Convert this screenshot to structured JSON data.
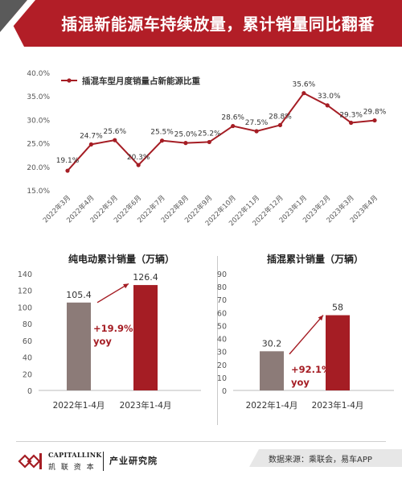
{
  "header": {
    "title": "插混新能源车持续放量，累计销量同比翻番",
    "colors": {
      "banner": "#b21e27",
      "accent": "#4a4a4a"
    }
  },
  "footer": {
    "logo_en": "CAPITALLINK",
    "logo_cn": "凯 联 资 本",
    "institute": "产业研究院",
    "source": "数据来源：乘联会，易车APP"
  },
  "chart_data": [
    {
      "type": "line",
      "title": "",
      "legend": "插混车型月度销量占新能源比重",
      "legend_position": "top-left",
      "categories": [
        "2022年3月",
        "2022年4月",
        "2022年5月",
        "2022年6月",
        "2022年7月",
        "2022年8月",
        "2022年9月",
        "2022年10月",
        "2022年11月",
        "2022年12月",
        "2023年1月",
        "2023年2月",
        "2023年3月",
        "2023年4月"
      ],
      "values": [
        19.1,
        24.7,
        25.6,
        20.3,
        25.5,
        25.0,
        25.2,
        28.6,
        27.5,
        28.8,
        35.6,
        33.0,
        29.3,
        29.8
      ],
      "value_labels": [
        "19.1%",
        "24.7%",
        "25.6%",
        "20.3%",
        "25.5%",
        "25.0%",
        "25.2%",
        "28.6%",
        "27.5%",
        "28.8%",
        "35.6%",
        "33.0%",
        "29.3%",
        "29.8%"
      ],
      "ylim": [
        15,
        40
      ],
      "yticks": [
        "15.0%",
        "20.0%",
        "25.0%",
        "30.0%",
        "35.0%",
        "40.0%"
      ],
      "grid": false,
      "color": "#a51d24"
    },
    {
      "type": "bar",
      "title": "纯电动累计销量（万辆）",
      "categories": [
        "2022年1-4月",
        "2023年1-4月"
      ],
      "values": [
        105.4,
        126.4
      ],
      "ylim": [
        0,
        140
      ],
      "yticks": [
        "0",
        "20",
        "40",
        "60",
        "80",
        "100",
        "120",
        "140"
      ],
      "growth_label": "+19.9%",
      "growth_unit": "yoy",
      "colors": [
        "#8c7b78",
        "#a51d24"
      ]
    },
    {
      "type": "bar",
      "title": "插混累计销量（万辆）",
      "categories": [
        "2022年1-4月",
        "2023年1-4月"
      ],
      "values": [
        30.2,
        58
      ],
      "ylim": [
        0,
        90
      ],
      "yticks": [
        "0",
        "10",
        "20",
        "30",
        "40",
        "50",
        "60",
        "70",
        "80",
        "90"
      ],
      "growth_label": "+92.1%",
      "growth_unit": "yoy",
      "colors": [
        "#8c7b78",
        "#a51d24"
      ]
    }
  ]
}
